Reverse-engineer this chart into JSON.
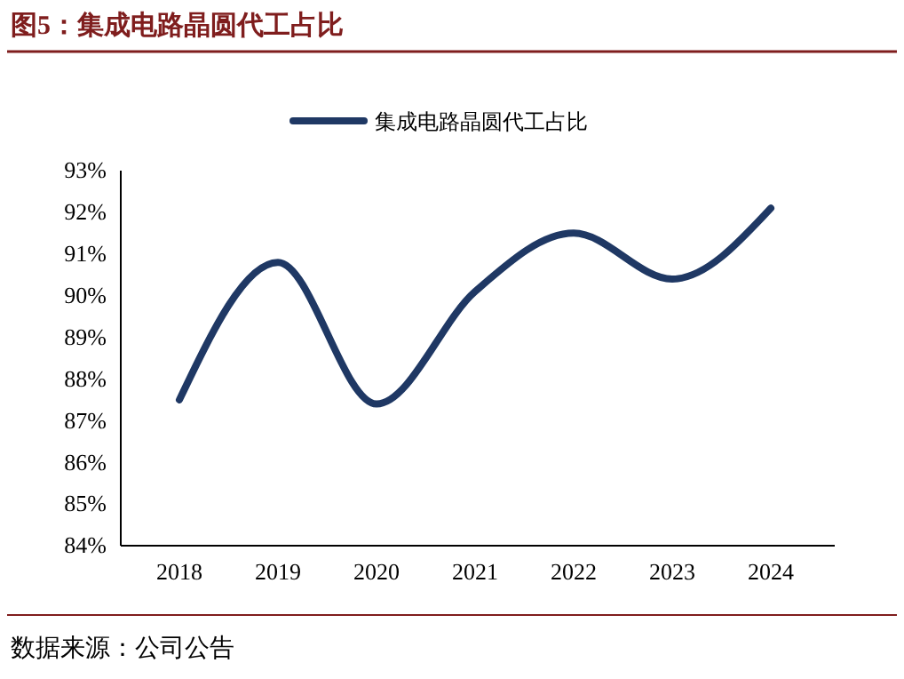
{
  "chart_data": {
    "type": "line",
    "title": "图5：集成电路晶圆代工占比",
    "categories": [
      "2018",
      "2019",
      "2020",
      "2021",
      "2022",
      "2023",
      "2024"
    ],
    "series": [
      {
        "name": "集成电路晶圆代工占比",
        "color": "#1f3864",
        "values": [
          87.5,
          90.8,
          87.4,
          90.1,
          91.5,
          90.4,
          92.1
        ]
      }
    ],
    "ylim": [
      84,
      93
    ],
    "yticks": [
      {
        "value": 84,
        "label": "84%"
      },
      {
        "value": 85,
        "label": "85%"
      },
      {
        "value": 86,
        "label": "86%"
      },
      {
        "value": 87,
        "label": "87%"
      },
      {
        "value": 88,
        "label": "88%"
      },
      {
        "value": 89,
        "label": "89%"
      },
      {
        "value": 90,
        "label": "90%"
      },
      {
        "value": 91,
        "label": "91%"
      },
      {
        "value": 92,
        "label": "92%"
      },
      {
        "value": 93,
        "label": "93%"
      }
    ],
    "legend": "top",
    "marker": "none",
    "line_style": "solid",
    "grid": false,
    "annotations": [
      "数据来源：公司公告"
    ]
  }
}
